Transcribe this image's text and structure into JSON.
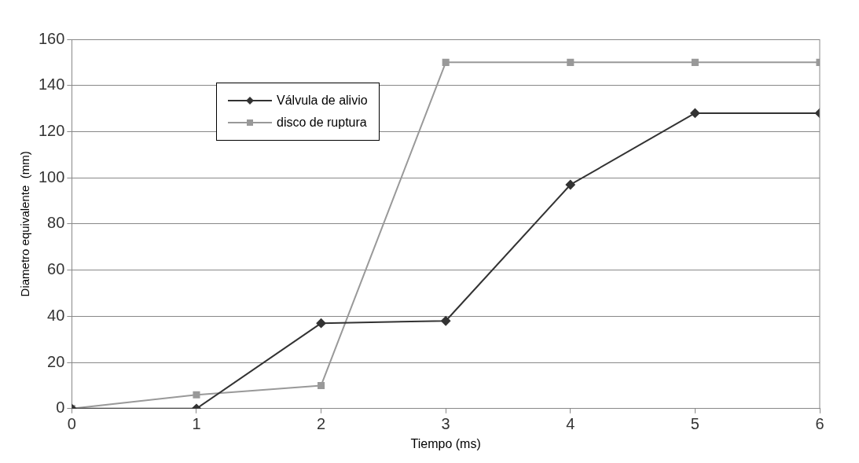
{
  "chart_data": {
    "type": "line",
    "xlabel": "Tiempo (ms)",
    "ylabel": "Diametro equivalente  (mm)",
    "x": [
      0,
      1,
      2,
      3,
      4,
      5,
      6
    ],
    "xlim": [
      0,
      6
    ],
    "xticks": [
      0,
      1,
      2,
      3,
      4,
      5,
      6
    ],
    "ylim": [
      0,
      160
    ],
    "yticks": [
      0,
      20,
      40,
      60,
      80,
      100,
      120,
      140,
      160
    ],
    "grid": "y",
    "legend": "top left",
    "line_style": "solid",
    "series": [
      {
        "name": "Válvula de alivio",
        "color": "#333333",
        "marker": "diamond",
        "values": [
          0,
          0,
          37,
          38,
          97,
          128,
          128
        ]
      },
      {
        "name": "disco de ruptura",
        "color": "#999999",
        "marker": "square",
        "values": [
          0,
          6,
          10,
          150,
          150,
          150,
          150
        ]
      }
    ]
  }
}
